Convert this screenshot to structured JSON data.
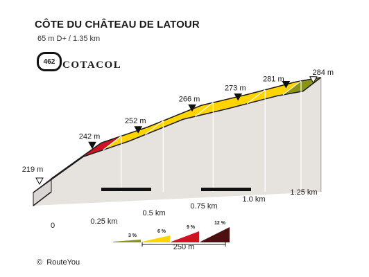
{
  "header": {
    "title": "CÔTE DU CHÂTEAU DE LATOUR",
    "subtitle": "65 m D+ / 1.35 km",
    "cotacol_number": "462",
    "cotacol_name": "COTACOL"
  },
  "footer": {
    "copyright_symbol": "©",
    "copyright_name": "RouteYou"
  },
  "chart_data": {
    "type": "area",
    "distance_unit": "km",
    "elevation_unit": "m",
    "xlim": [
      0,
      1.35
    ],
    "x_ticks": [
      "0",
      "0.25 km",
      "0.5 km",
      "0.75 km",
      "1.0 km",
      "1.25 km"
    ],
    "x_tick_values": [
      0,
      0.25,
      0.5,
      0.75,
      1.0,
      1.25
    ],
    "profile": [
      {
        "x": 0.0,
        "y": 219,
        "label": "219 m",
        "marker": "hollow"
      },
      {
        "x": 0.25,
        "y": 242,
        "label": "242 m",
        "marker": "filled"
      },
      {
        "x": 0.48,
        "y": 252,
        "label": "252 m",
        "marker": "filled"
      },
      {
        "x": 0.75,
        "y": 266,
        "label": "266 m",
        "marker": "filled"
      },
      {
        "x": 0.98,
        "y": 273,
        "label": "273 m",
        "marker": "filled"
      },
      {
        "x": 1.22,
        "y": 281,
        "label": "281 m",
        "marker": "filled"
      },
      {
        "x": 1.35,
        "y": 284,
        "label": "284 m",
        "marker": "hollow"
      }
    ],
    "segments": [
      {
        "from": 0.0,
        "to": 0.35,
        "color": "#cc1424"
      },
      {
        "from": 0.35,
        "to": 1.25,
        "color": "#ffd400"
      },
      {
        "from": 1.25,
        "to": 1.35,
        "color": "#8a9416"
      }
    ],
    "vertical_lines": [
      0.35,
      0.56,
      0.81,
      1.07,
      1.25
    ],
    "gradient_legend": {
      "items": [
        {
          "label": "3 %",
          "color": "#8a9416"
        },
        {
          "label": "6 %",
          "color": "#ffd400"
        },
        {
          "label": "9 %",
          "color": "#cc1424"
        },
        {
          "label": "12 %",
          "color": "#4d1010"
        }
      ],
      "scale_label": "250 m"
    },
    "colors": {
      "side_fill": "#e6e3df",
      "top_face": "#d9d6d3",
      "outline": "#1a1a1a"
    }
  }
}
